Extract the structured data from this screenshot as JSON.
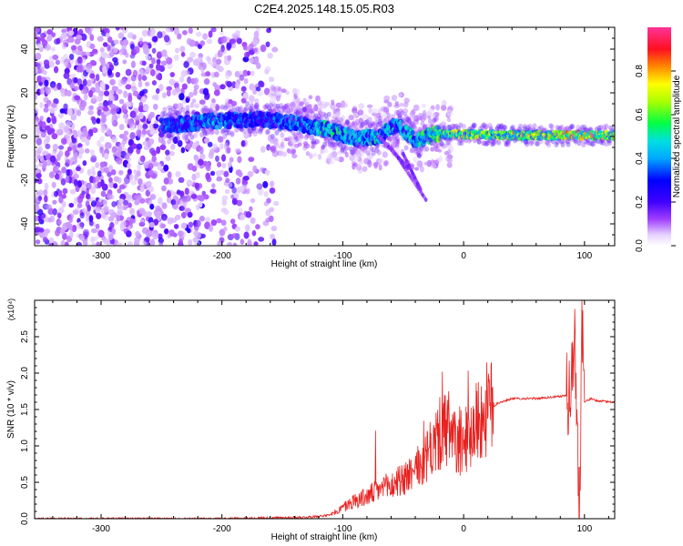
{
  "title": "C2E4.2025.148.15.05.R03",
  "colors": {
    "snr_line": "#e8201e",
    "axis": "#000000",
    "spectro_low": "#ece0ff",
    "spectro_mid": "#7a00ff",
    "spectro_high": "#ff0033"
  },
  "chart_data": [
    {
      "type": "heatmap",
      "xlabel": "Height of straight line (km)",
      "ylabel": "Frequency (Hz)",
      "xlim": [
        -355,
        125
      ],
      "ylim": [
        -50,
        50
      ],
      "x_ticks": [
        -300,
        -200,
        -100,
        0,
        100
      ],
      "y_ticks": [
        40,
        20,
        0,
        -20,
        -40
      ],
      "colorbar": {
        "label": "Normalized spectral amplitude",
        "range": [
          0.0,
          1.0
        ],
        "ticks": [
          "0.0",
          "0.2",
          "0.4",
          "0.6",
          "0.8"
        ],
        "colormap": [
          "#ffffff",
          "#e6d2ff",
          "#7a00ff",
          "#0000ff",
          "#00d4ff",
          "#00ff66",
          "#ffff00",
          "#ff8800",
          "#ff0033",
          "#ff3399"
        ]
      },
      "ridge": {
        "description_x": [
          -245,
          -210,
          -170,
          -140,
          -110,
          -90,
          -70,
          -55,
          -40,
          -25,
          0,
          50,
          90,
          125
        ],
        "frequency": [
          5,
          7,
          8,
          6,
          3,
          -1,
          0,
          6,
          -2,
          1,
          1,
          0.5,
          0.5,
          0.5
        ],
        "amplitude": [
          0.35,
          0.45,
          0.35,
          0.4,
          0.55,
          0.45,
          0.55,
          0.45,
          0.5,
          0.6,
          0.7,
          0.68,
          0.8,
          0.7
        ]
      }
    },
    {
      "type": "line",
      "xlabel": "Height of straight line (km)",
      "ylabel": "SNR (10 * v/v)",
      "y_multiplier": "(x10⁴)",
      "xlim": [
        -355,
        125
      ],
      "ylim": [
        0,
        3.0
      ],
      "x_ticks": [
        -300,
        -200,
        -100,
        0,
        100
      ],
      "y_ticks": [
        "0.0",
        "0.5",
        "1.0",
        "1.5",
        "2.0",
        "2.5"
      ],
      "series": [
        {
          "x": [
            -355,
            -200,
            -130,
            -110,
            -100,
            -90,
            -80,
            -70,
            -60,
            -50,
            -40,
            -30,
            -25,
            -20,
            -15,
            -10,
            -5,
            0,
            10,
            20,
            30,
            40,
            60,
            80,
            88,
            92,
            96,
            98,
            100,
            105,
            110,
            125
          ],
          "y": [
            0.0,
            0.0,
            0.02,
            0.05,
            0.15,
            0.25,
            0.3,
            0.4,
            0.45,
            0.55,
            0.65,
            0.85,
            1.0,
            1.15,
            1.2,
            1.1,
            1.0,
            1.05,
            1.3,
            1.5,
            1.6,
            1.65,
            1.65,
            1.68,
            1.7,
            2.4,
            0.1,
            2.9,
            1.6,
            1.65,
            1.62,
            1.6
          ]
        }
      ]
    }
  ]
}
